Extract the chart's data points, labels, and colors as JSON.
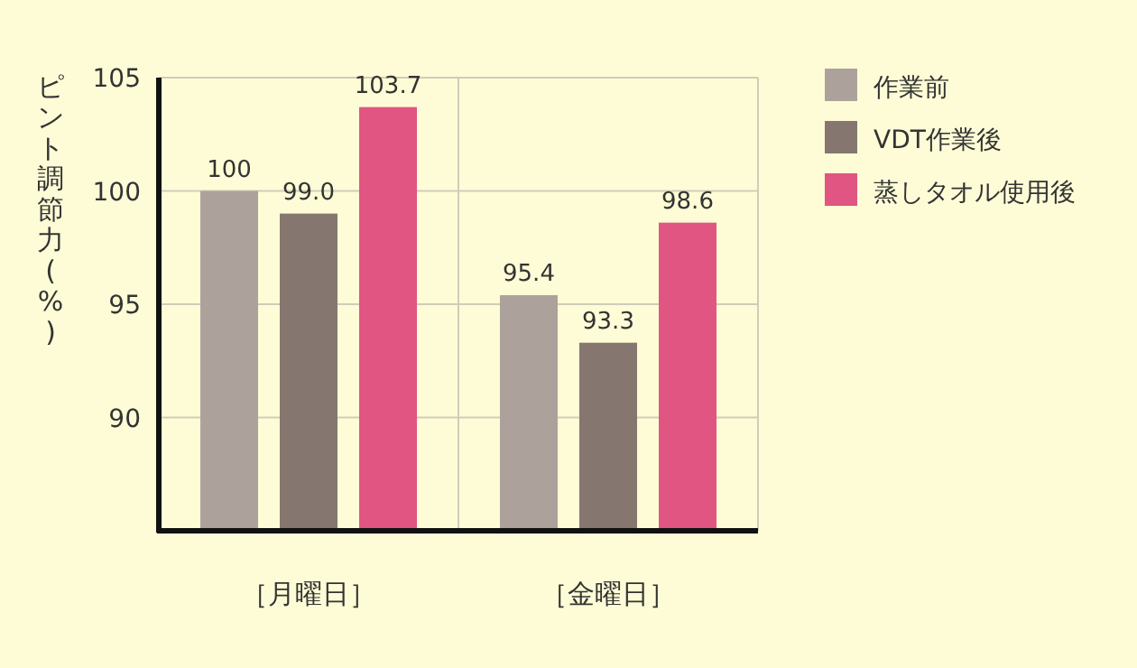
{
  "chart_data": {
    "type": "bar",
    "ylabel": "ピント調節力(%)",
    "categories": [
      "［月曜日］",
      "［金曜日］"
    ],
    "series": [
      {
        "name": "作業前",
        "color": "#ada29b",
        "values": [
          100,
          95.4
        ],
        "value_labels": [
          "100",
          "95.4"
        ]
      },
      {
        "name": "VDT作業後",
        "color": "#85776f",
        "values": [
          99.0,
          93.3
        ],
        "value_labels": [
          "99.0",
          "93.3"
        ]
      },
      {
        "name": "蒸しタオル使用後",
        "color": "#e05581",
        "values": [
          103.7,
          98.6
        ],
        "value_labels": [
          "103.7",
          "98.6"
        ]
      }
    ],
    "ylim": [
      85,
      105
    ],
    "yticks": [
      90,
      95,
      100,
      105
    ],
    "grid": true,
    "legend": "right"
  }
}
